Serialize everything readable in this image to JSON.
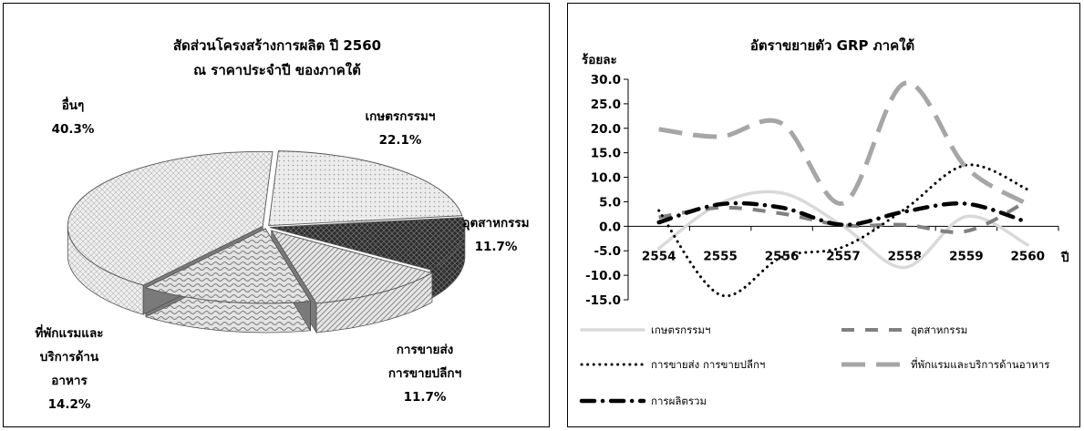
{
  "pie_chart": {
    "title_line1": "สัดส่วนโครงสร้างการผลิต ปี 2560",
    "title_line2": "ณ ราคาประจำปี ของภาคใต้"
  },
  "line_chart": {
    "title": "อัตราขยายตัว GRP ภาคใต้",
    "ylabel": "ร้อยละ",
    "xlabel": "ปี"
  },
  "chart_data": [
    {
      "type": "pie",
      "title": "สัดส่วนโครงสร้างการผลิต ปี 2560 ณ ราคาประจำปี ของภาคใต้",
      "slices": [
        {
          "name": "เกษตรกรรมฯ",
          "label_lines": [
            "เกษตรกรรมฯ"
          ],
          "value": 22.1,
          "value_label": "22.1%",
          "fill": "#e6e6e6",
          "pattern": "dots"
        },
        {
          "name": "อุตสาหกรรม",
          "label_lines": [
            "อุตสาหกรรม"
          ],
          "value": 11.7,
          "value_label": "11.7%",
          "fill": "#3a3a3a",
          "pattern": "dark-diamond"
        },
        {
          "name": "การขายส่ง การขายปลีกฯ",
          "label_lines": [
            "การขายส่ง",
            "การขายปลีกฯ"
          ],
          "value": 11.7,
          "value_label": "11.7%",
          "fill": "#d0d0d0",
          "pattern": "diagonal"
        },
        {
          "name": "ที่พักแรมและบริการด้านอาหาร",
          "label_lines": [
            "ที่พักแรมและ",
            "บริการด้าน",
            "อาหาร"
          ],
          "value": 14.2,
          "value_label": "14.2%",
          "fill": "#cfcfcf",
          "pattern": "wave"
        },
        {
          "name": "อื่นๆ",
          "label_lines": [
            "อื่นๆ"
          ],
          "value": 40.3,
          "value_label": "40.3%",
          "fill": "#e2e2e2",
          "pattern": "grid"
        }
      ]
    },
    {
      "type": "line",
      "title": "อัตราขยายตัว GRP ภาคใต้",
      "ylabel": "ร้อยละ",
      "xlabel": "ปี",
      "x": [
        "2554",
        "2555",
        "2556",
        "2557",
        "2558",
        "2559",
        "2560"
      ],
      "ylim": [
        -15,
        30
      ],
      "yticks": [
        "30.0",
        "25.0",
        "20.0",
        "15.0",
        "10.0",
        "5.0",
        "0.0",
        "-5.0",
        "-10.0",
        "-15.0"
      ],
      "grid": false,
      "legend_position": "bottom",
      "series": [
        {
          "name": "เกษตรกรรมฯ",
          "values": [
            -4.5,
            4.7,
            6.8,
            0.0,
            -8.4,
            2.0,
            -3.8
          ],
          "color": "#d9d9d9",
          "style": "solid"
        },
        {
          "name": "อุตสาหกรรม",
          "values": [
            1.8,
            3.8,
            2.6,
            0.2,
            0.3,
            -1.0,
            5.2
          ],
          "color": "#808080",
          "style": "dashed"
        },
        {
          "name": "การขายส่ง การขายปลีกฯ",
          "values": [
            3.2,
            -14.0,
            -6.3,
            -4.2,
            3.5,
            12.5,
            7.5
          ],
          "color": "#000000",
          "style": "dotted"
        },
        {
          "name": "ที่พักแรมและบริการด้านอาหาร",
          "values": [
            19.8,
            18.3,
            21.0,
            4.7,
            29.2,
            12.0,
            4.5
          ],
          "color": "#a6a6a6",
          "style": "longdash"
        },
        {
          "name": "การผลิตรวม",
          "values": [
            0.8,
            4.5,
            3.8,
            0.3,
            3.0,
            4.6,
            0.8
          ],
          "color": "#000000",
          "style": "dashdot"
        }
      ]
    }
  ]
}
